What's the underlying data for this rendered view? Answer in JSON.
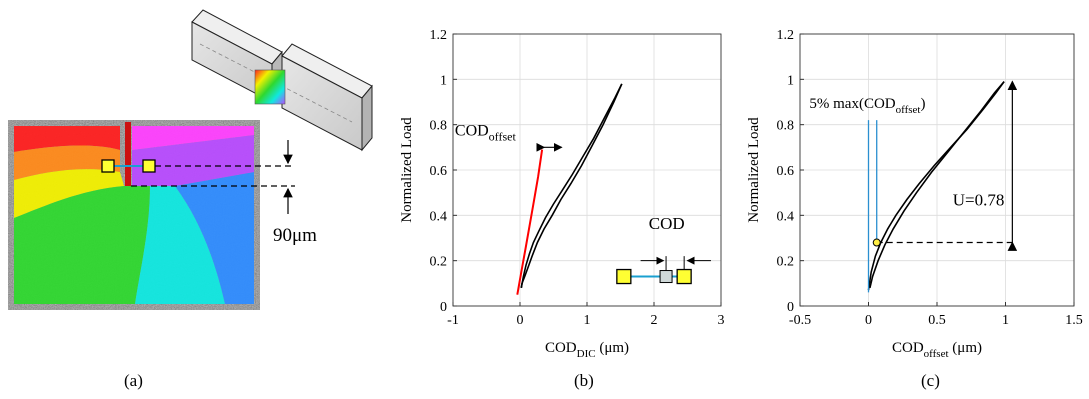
{
  "panel_labels": [
    "(a)",
    "(b)",
    "(c)"
  ],
  "panel_a": {
    "dimension_label": "90μm",
    "colors": {
      "red": "#ff2020",
      "orange": "#ff8a1a",
      "yellow": "#f2f000",
      "green": "#2fd82f",
      "cyan": "#10e8e0",
      "blue": "#2f8cff",
      "violet": "#b84cff",
      "magenta": "#ff40ff",
      "crack": "#cc1111",
      "marker_fill": "#ffff33",
      "marker_line": "#1aa0d0"
    }
  },
  "chart_data": [
    {
      "type": "line",
      "xlabel": "COD",
      "xlabel_sub": "DIC",
      "xlabel_unit": " (μm)",
      "ylabel": "Normalized Load",
      "xlim": [
        -1,
        3
      ],
      "ylim": [
        0,
        1.2
      ],
      "xticks": [
        -1,
        0,
        1,
        2,
        3
      ],
      "yticks": [
        0,
        0.2,
        0.4,
        0.6,
        0.8,
        1,
        1.2
      ],
      "grid": true,
      "series": [
        {
          "color": "#000000",
          "x": [
            0.02,
            0.05,
            0.09,
            0.14,
            0.2,
            0.28,
            0.38,
            0.5,
            0.63,
            0.78,
            0.94,
            1.1,
            1.26,
            1.42,
            1.52
          ],
          "y": [
            0.08,
            0.13,
            0.18,
            0.23,
            0.28,
            0.33,
            0.39,
            0.45,
            0.51,
            0.58,
            0.66,
            0.74,
            0.83,
            0.92,
            0.98
          ]
        },
        {
          "color": "#000000",
          "x": [
            1.52,
            1.4,
            1.24,
            1.08,
            0.92,
            0.76,
            0.61,
            0.48,
            0.36,
            0.26,
            0.18,
            0.12,
            0.07,
            0.03,
            0.02
          ],
          "y": [
            0.98,
            0.9,
            0.8,
            0.71,
            0.62,
            0.54,
            0.47,
            0.4,
            0.34,
            0.28,
            0.22,
            0.17,
            0.13,
            0.1,
            0.08
          ]
        },
        {
          "color": "#ff0000",
          "x": [
            -0.04,
            0.02,
            0.08,
            0.14,
            0.2,
            0.27,
            0.33
          ],
          "y": [
            0.05,
            0.15,
            0.25,
            0.35,
            0.45,
            0.57,
            0.69
          ]
        }
      ],
      "annotations": [
        {
          "text": "COD",
          "sub": "offset",
          "x": -0.3,
          "y": 0.77
        },
        {
          "text": "COD",
          "x": 2.25,
          "y": 0.33
        }
      ]
    },
    {
      "type": "line",
      "xlabel": "COD",
      "xlabel_sub": "offset",
      "xlabel_unit": " (μm)",
      "ylabel": "Normalized Load",
      "xlim": [
        -0.5,
        1.5
      ],
      "ylim": [
        0,
        1.2
      ],
      "xticks": [
        -0.5,
        0,
        0.5,
        1,
        1.5
      ],
      "yticks": [
        0,
        0.2,
        0.4,
        0.6,
        0.8,
        1,
        1.2
      ],
      "grid": true,
      "series": [
        {
          "color": "#000000",
          "x": [
            0.0,
            0.02,
            0.05,
            0.09,
            0.14,
            0.2,
            0.28,
            0.37,
            0.48,
            0.6,
            0.72,
            0.84,
            0.93,
            0.99
          ],
          "y": [
            0.07,
            0.15,
            0.22,
            0.28,
            0.34,
            0.4,
            0.47,
            0.54,
            0.62,
            0.7,
            0.78,
            0.87,
            0.94,
            0.99
          ]
        },
        {
          "color": "#000000",
          "x": [
            0.99,
            0.92,
            0.82,
            0.7,
            0.58,
            0.46,
            0.35,
            0.26,
            0.18,
            0.12,
            0.07,
            0.03,
            0.01
          ],
          "y": [
            0.99,
            0.94,
            0.86,
            0.77,
            0.68,
            0.59,
            0.5,
            0.42,
            0.34,
            0.27,
            0.2,
            0.13,
            0.08
          ]
        }
      ],
      "vlines": [
        {
          "x": 0.0,
          "y0": 0.06,
          "y1": 0.82
        },
        {
          "x": 0.06,
          "y0": 0.28,
          "y1": 0.82
        }
      ],
      "point": {
        "x": 0.06,
        "y": 0.28
      },
      "dashed_hline": {
        "x0": 0.06,
        "x1": 1.05,
        "y": 0.28
      },
      "arrow_v": {
        "x": 1.05,
        "y0": 0.28,
        "y1": 0.99
      },
      "annotations": [
        {
          "text": "5% max(COD",
          "sub": "offset",
          "tail": ")",
          "x": -0.3,
          "y": 0.9
        },
        {
          "text": "U=0.78",
          "x": 1.05,
          "y": 0.47
        }
      ]
    }
  ]
}
